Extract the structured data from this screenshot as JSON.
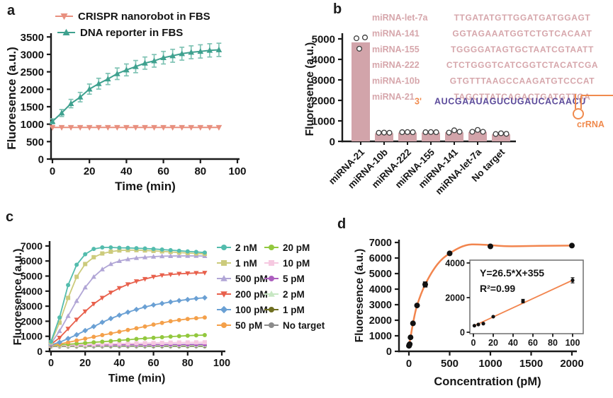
{
  "figure_background": "#ffffff",
  "axis_color": "#1a1a1a",
  "chart_data": [
    {
      "id": "a",
      "panel_label": "a",
      "type": "line",
      "xlabel": "Time (min)",
      "ylabel": "Fluoresence (a.u.)",
      "x": [
        0,
        5,
        10,
        15,
        20,
        25,
        30,
        35,
        40,
        45,
        50,
        55,
        60,
        65,
        70,
        75,
        80,
        85,
        90
      ],
      "xticks": [
        0,
        20,
        40,
        60,
        80,
        100
      ],
      "yticks": [
        0,
        500,
        1000,
        1500,
        2000,
        2500,
        3000,
        3500
      ],
      "xlim": [
        0,
        100
      ],
      "ylim": [
        0,
        3500
      ],
      "series": [
        {
          "name": "CRISPR nanorobot in FBS",
          "color": "#E8907F",
          "marker": "tri-down",
          "values": [
            905,
            905,
            905,
            905,
            905,
            905,
            905,
            905,
            905,
            905,
            905,
            905,
            905,
            905,
            905,
            905,
            905,
            905,
            905
          ],
          "errors": [
            0,
            0,
            0,
            0,
            0,
            0,
            0,
            0,
            0,
            0,
            0,
            0,
            0,
            0,
            0,
            0,
            0,
            0,
            0
          ]
        },
        {
          "name": "DNA reporter in FBS",
          "color": "#3FA18F",
          "err_color": "#7FC3B4",
          "marker": "tri-up",
          "values": [
            1080,
            1320,
            1590,
            1775,
            2005,
            2160,
            2295,
            2445,
            2555,
            2650,
            2750,
            2815,
            2905,
            2960,
            3020,
            3060,
            3085,
            3115,
            3130
          ],
          "errors": [
            70,
            100,
            120,
            135,
            145,
            155,
            160,
            165,
            170,
            175,
            175,
            180,
            180,
            185,
            185,
            185,
            190,
            190,
            190
          ]
        }
      ]
    },
    {
      "id": "b",
      "panel_label": "b",
      "type": "bar",
      "ylabel": "Fluoresence (a.u.)",
      "categories": [
        "miRNA-21",
        "miRNA-10b",
        "miRNA-222",
        "miRNA-155",
        "miRNA-141",
        "miRNA-let-7a",
        "No target"
      ],
      "values": [
        4830,
        395,
        430,
        430,
        440,
        460,
        345
      ],
      "points": [
        [
          5030,
          5070,
          4520
        ],
        [
          420,
          430,
          420
        ],
        [
          450,
          455,
          450
        ],
        [
          450,
          455,
          450
        ],
        [
          430,
          540,
          470
        ],
        [
          470,
          560,
          470
        ],
        [
          360,
          395,
          370
        ]
      ],
      "yticks": [
        0,
        1000,
        2000,
        3000,
        4000,
        5000
      ],
      "ylim": [
        0,
        5300
      ],
      "bar_color": "#D2A4AA",
      "point_stroke": "#3b3b3b",
      "annotations": {
        "seq_color": "#D6A6AB",
        "crRNA_seq_color": "#5C4B9B",
        "crRNA_color": "#F08A4D",
        "sequences": [
          {
            "name": "miRNA-let-7a",
            "seq": "TTGATATGTTGGATGATGGAGT"
          },
          {
            "name": "miRNA-141",
            "seq": "GGTAGAAATGGTCTGTCACAAT"
          },
          {
            "name": "miRNA-155",
            "seq": "TGGGGATAGTGCTAATCGTAATT"
          },
          {
            "name": "miRNA-222",
            "seq": "CTCTGGGTCATCGGTCTACATCGA"
          },
          {
            "name": "miRNA-10b",
            "seq": "GTGTTTAAGCCAAGATGTCCCAT"
          },
          {
            "name": "miRNA-21",
            "seq": "TAGCTTATCAGACTGATGTTGA"
          }
        ],
        "crRNA_label_prefix": "3'",
        "crRNA_seq": "AUCGAAUAGUCUGAUCACAACU",
        "crRNA_name": "crRNA"
      }
    },
    {
      "id": "c",
      "panel_label": "c",
      "type": "line",
      "xlabel": "Time (min)",
      "ylabel": "Fluoresence (a.u.)",
      "x": [
        0,
        5,
        10,
        15,
        20,
        25,
        30,
        35,
        40,
        45,
        50,
        55,
        60,
        65,
        70,
        75,
        80,
        85,
        90
      ],
      "xticks": [
        0,
        20,
        40,
        60,
        80,
        100
      ],
      "yticks": [
        0,
        1000,
        2000,
        3000,
        4000,
        5000,
        6000,
        7000
      ],
      "xlim": [
        0,
        100
      ],
      "ylim": [
        0,
        7300
      ],
      "legend_position": "right",
      "series": [
        {
          "name": "2 nM",
          "color": "#53BCAD",
          "marker": "circle",
          "values": [
            650,
            2250,
            4400,
            5750,
            6450,
            6800,
            6900,
            6900,
            6880,
            6870,
            6850,
            6830,
            6800,
            6760,
            6720,
            6680,
            6640,
            6600,
            6560
          ]
        },
        {
          "name": "1 nM",
          "color": "#CCCB7C",
          "marker": "square",
          "values": [
            600,
            1900,
            3550,
            4950,
            5800,
            6250,
            6500,
            6620,
            6700,
            6720,
            6720,
            6700,
            6670,
            6640,
            6600,
            6560,
            6530,
            6500,
            6470
          ]
        },
        {
          "name": "500 pM",
          "color": "#B1A6D6",
          "marker": "tri-up",
          "values": [
            520,
            1350,
            2350,
            3350,
            4250,
            4950,
            5450,
            5800,
            6000,
            6120,
            6200,
            6250,
            6290,
            6320,
            6330,
            6340,
            6340,
            6340,
            6330
          ]
        },
        {
          "name": "200 pM",
          "color": "#E8604C",
          "marker": "tri-down",
          "values": [
            470,
            900,
            1500,
            2100,
            2650,
            3150,
            3550,
            3900,
            4200,
            4450,
            4650,
            4800,
            4950,
            5050,
            5100,
            5150,
            5180,
            5200,
            5210
          ]
        },
        {
          "name": "100 pM",
          "color": "#6AA0D4",
          "marker": "diamond",
          "values": [
            430,
            600,
            850,
            1100,
            1380,
            1650,
            1930,
            2180,
            2400,
            2600,
            2780,
            2950,
            3080,
            3180,
            3280,
            3370,
            3440,
            3510,
            3560
          ]
        },
        {
          "name": "50 pM",
          "color": "#F4A04A",
          "marker": "circle",
          "values": [
            400,
            490,
            600,
            720,
            840,
            960,
            1080,
            1190,
            1300,
            1420,
            1530,
            1650,
            1780,
            1890,
            2000,
            2080,
            2150,
            2200,
            2250
          ]
        },
        {
          "name": "20 pM",
          "color": "#92C83E",
          "marker": "circle",
          "values": [
            390,
            430,
            470,
            510,
            550,
            600,
            640,
            680,
            730,
            770,
            820,
            860,
            900,
            940,
            980,
            1010,
            1040,
            1060,
            1080
          ]
        },
        {
          "name": "10 pM",
          "color": "#F6C9E1",
          "marker": "square",
          "values": [
            380,
            400,
            420,
            440,
            455,
            470,
            485,
            500,
            510,
            520,
            535,
            545,
            555,
            565,
            575,
            585,
            590,
            595,
            600
          ]
        },
        {
          "name": "5 pM",
          "color": "#AC5EBE",
          "marker": "circle",
          "values": [
            400,
            405,
            410,
            415,
            420,
            424,
            428,
            431,
            434,
            437,
            440,
            443,
            446,
            448,
            450,
            452,
            454,
            456,
            458
          ]
        },
        {
          "name": "2 pM",
          "color": "#C7E7C3",
          "marker": "tri-up",
          "values": [
            380,
            381,
            383,
            385,
            386,
            388,
            389,
            390,
            391,
            392,
            393,
            394,
            395,
            396,
            397,
            398,
            399,
            400,
            401
          ]
        },
        {
          "name": "1 pM",
          "color": "#6E6E20",
          "marker": "circle",
          "values": [
            350,
            351,
            352,
            353,
            354,
            355,
            355,
            356,
            356,
            357,
            357,
            358,
            358,
            359,
            359,
            360,
            360,
            361,
            361
          ]
        },
        {
          "name": "No target",
          "color": "#8B8B8B",
          "marker": "circle",
          "values": [
            330,
            330,
            331,
            331,
            332,
            332,
            333,
            333,
            334,
            334,
            334,
            335,
            335,
            335,
            336,
            336,
            336,
            337,
            337
          ]
        }
      ]
    },
    {
      "id": "d",
      "panel_label": "d",
      "type": "scatter",
      "xlabel": "Concentration (pM)",
      "ylabel": "Fluoresence (a.u.)",
      "x": [
        1,
        2,
        5,
        10,
        20,
        50,
        100,
        200,
        500,
        1000,
        2000
      ],
      "y": [
        355,
        375,
        410,
        460,
        900,
        1800,
        2950,
        4300,
        6300,
        6750,
        6800
      ],
      "yerr": [
        0,
        0,
        0,
        0,
        0,
        0,
        0,
        160,
        0,
        0,
        0
      ],
      "xticks": [
        0,
        500,
        1000,
        1500,
        2000
      ],
      "yticks": [
        0,
        1000,
        2000,
        3000,
        4000,
        5000,
        6000,
        7000
      ],
      "xlim": [
        0,
        2000
      ],
      "ylim": [
        0,
        7300
      ],
      "point_color": "#111111",
      "fit_color": "#F2854E",
      "fit_curve": [
        [
          0,
          355
        ],
        [
          20,
          900
        ],
        [
          50,
          1800
        ],
        [
          100,
          2950
        ],
        [
          200,
          4300
        ],
        [
          350,
          5600
        ],
        [
          500,
          6300
        ],
        [
          700,
          6820
        ],
        [
          900,
          6860
        ],
        [
          1200,
          6760
        ],
        [
          1600,
          6780
        ],
        [
          2000,
          6800
        ]
      ],
      "inset": {
        "equation": "Y=26.5*X+355",
        "r2": "R²=0.99",
        "slope": 26.5,
        "intercept": 355,
        "x": [
          1,
          5,
          10,
          20,
          50,
          100
        ],
        "y": [
          380,
          450,
          500,
          900,
          1800,
          3000
        ],
        "yerr": [
          0,
          0,
          0,
          0,
          100,
          150
        ],
        "xticks": [
          0,
          20,
          40,
          60,
          80,
          100
        ],
        "yticks": [
          0,
          2000,
          4000
        ],
        "xlim": [
          0,
          110
        ],
        "ylim": [
          0,
          4200
        ],
        "border_color": "#6f6f6f"
      }
    }
  ]
}
